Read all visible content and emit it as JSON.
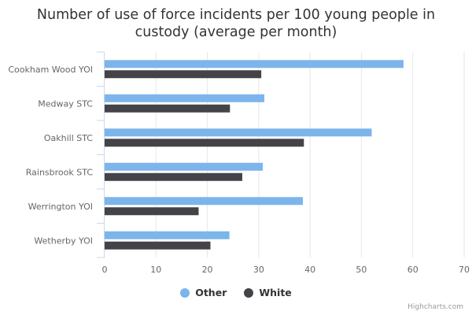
{
  "chart_data": {
    "type": "bar",
    "orientation": "horizontal",
    "title_lines": [
      "Number of use of force incidents per 100 young people in",
      "custody (average per month)"
    ],
    "categories": [
      "Cookham Wood YOI",
      "Medway STC",
      "Oakhill STC",
      "Rainsbrook STC",
      "Werrington YOI",
      "Wetherby YOI"
    ],
    "series": [
      {
        "name": "Other",
        "color": "#7cb5ec",
        "values": [
          58.2,
          31.1,
          52.0,
          30.8,
          38.6,
          24.3
        ]
      },
      {
        "name": "White",
        "color": "#434348",
        "values": [
          30.5,
          24.4,
          38.8,
          26.8,
          18.3,
          20.6
        ]
      }
    ],
    "xlim": [
      0,
      70
    ],
    "ticks": [
      "0",
      "10",
      "20",
      "30",
      "40",
      "50",
      "60",
      "70"
    ],
    "grid": true,
    "legend_position": "bottom-center"
  },
  "credits": "Highcharts.com"
}
